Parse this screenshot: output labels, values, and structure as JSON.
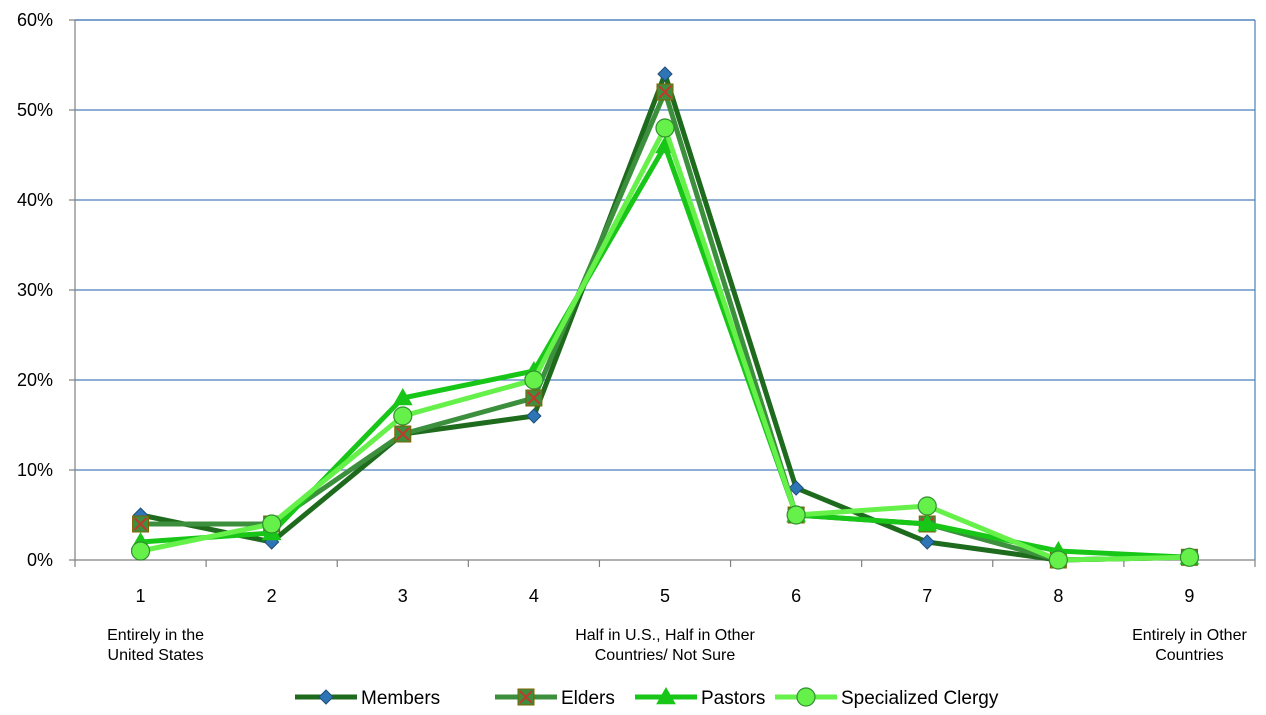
{
  "chart_data": {
    "type": "line",
    "title": "",
    "xlabel": "",
    "ylabel": "",
    "categories": [
      "1",
      "2",
      "3",
      "4",
      "5",
      "6",
      "7",
      "8",
      "9"
    ],
    "category_annotations": [
      {
        "category": "1",
        "lines": [
          "Entirely in the",
          "United States"
        ]
      },
      {
        "category": "5",
        "lines": [
          "Half in U.S., Half in Other",
          "Countries/ Not Sure"
        ]
      },
      {
        "category": "9",
        "lines": [
          "Entirely in Other",
          "Countries"
        ]
      }
    ],
    "ylim": [
      0,
      60
    ],
    "yticks": [
      0,
      10,
      20,
      30,
      40,
      50,
      60
    ],
    "ytick_labels": [
      "0%",
      "10%",
      "20%",
      "30%",
      "40%",
      "50%",
      "60%"
    ],
    "grid": true,
    "legend_position": "bottom",
    "series": [
      {
        "name": "Members",
        "color": "#1e6b1e",
        "marker": "diamond",
        "values": [
          5,
          2,
          14,
          16,
          54,
          8,
          2,
          0,
          0.3
        ]
      },
      {
        "name": "Elders",
        "color": "#3c8f3c",
        "marker": "box-x",
        "values": [
          4,
          4,
          14,
          18,
          52,
          5,
          4,
          0,
          0.3
        ]
      },
      {
        "name": "Pastors",
        "color": "#18c618",
        "marker": "triangle",
        "values": [
          2,
          3,
          18,
          21,
          46,
          5,
          4,
          1,
          0.3
        ]
      },
      {
        "name": "Specialized Clergy",
        "color": "#66f04a",
        "marker": "circle",
        "values": [
          1,
          4,
          16,
          20,
          48,
          5,
          6,
          0,
          0.3
        ]
      }
    ]
  }
}
